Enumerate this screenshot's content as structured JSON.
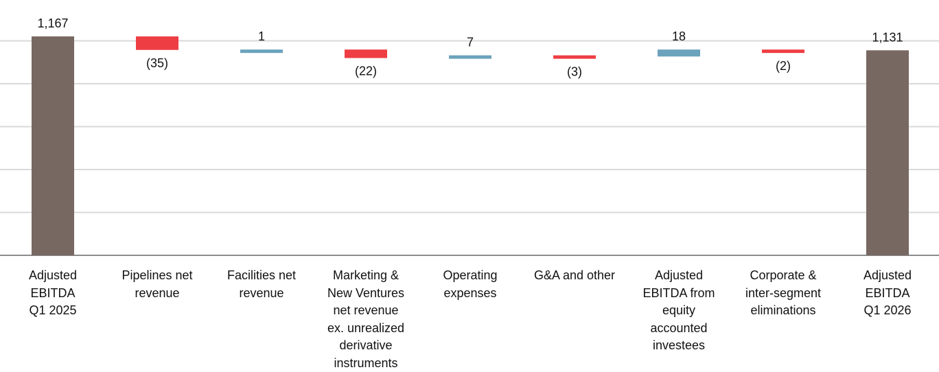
{
  "chart_data": {
    "type": "bar",
    "subtype": "waterfall",
    "title": "",
    "xlabel": "",
    "ylabel": "",
    "y_axis_visible": false,
    "gridlines": true,
    "legend": "none",
    "ylim": [
      600,
      1200
    ],
    "categories": [
      "Adjusted EBITDA Q1 2025",
      "Pipelines net revenue",
      "Facilities net revenue",
      "Marketing & New Ventures net revenue ex. unrealized derivative instruments",
      "Operating expenses",
      "G&A and other",
      "Adjusted EBITDA from equity accounted investees",
      "Corporate & inter-segment eliminations",
      "Adjusted EBITDA Q1 2026"
    ],
    "category_lines": [
      [
        "Adjusted",
        "EBITDA",
        "Q1 2025"
      ],
      [
        "Pipelines net",
        "revenue"
      ],
      [
        "Facilities net",
        "revenue"
      ],
      [
        "Marketing &",
        "New Ventures",
        "net revenue",
        "ex. unrealized",
        "derivative",
        "instruments"
      ],
      [
        "Operating",
        "expenses"
      ],
      [
        "G&A and other"
      ],
      [
        "Adjusted",
        "EBITDA from",
        "equity",
        "accounted",
        "investees"
      ],
      [
        "Corporate &",
        "inter-segment",
        "eliminations"
      ],
      [
        "Adjusted",
        "EBITDA",
        "Q1 2026"
      ]
    ],
    "values": [
      1167,
      -35,
      1,
      -22,
      7,
      -3,
      18,
      -2,
      1131
    ],
    "bar_kind": [
      "total",
      "delta",
      "delta",
      "delta",
      "delta",
      "delta",
      "delta",
      "delta",
      "total"
    ],
    "data_labels": [
      "1,167",
      "(35)",
      "1",
      "(22)",
      "7",
      "(3)",
      "18",
      "(2)",
      "1,131"
    ],
    "colors": {
      "total": "#786862",
      "decrease": "#ee3e43",
      "increase": "#6ba3bc",
      "grid": "#d9d9d9",
      "axis": "#8c8c8c"
    }
  }
}
